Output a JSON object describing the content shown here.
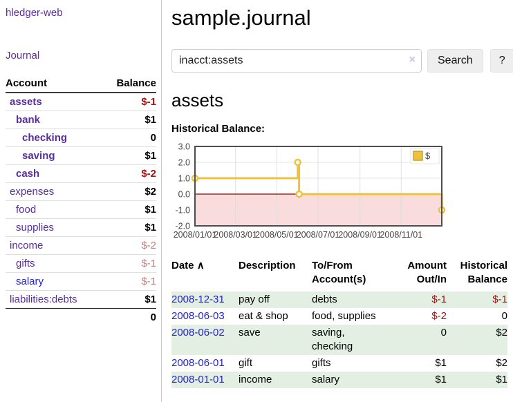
{
  "app_title": "hledger-web",
  "sidebar": {
    "journal_link": "Journal",
    "account_header": "Account",
    "balance_header": "Balance",
    "accounts": [
      {
        "name": "assets",
        "balance": "$-1",
        "indent": 0,
        "bold": true,
        "balance_class": "neg",
        "balance_bold": true,
        "link": "purple"
      },
      {
        "name": "bank",
        "balance": "$1",
        "indent": 1,
        "bold": true,
        "balance_class": "",
        "balance_bold": true,
        "link": "purple"
      },
      {
        "name": "checking",
        "balance": "0",
        "indent": 2,
        "bold": true,
        "balance_class": "",
        "balance_bold": true,
        "link": "purple"
      },
      {
        "name": "saving",
        "balance": "$1",
        "indent": 2,
        "bold": true,
        "balance_class": "",
        "balance_bold": true,
        "link": "purple"
      },
      {
        "name": "cash",
        "balance": "$-2",
        "indent": 1,
        "bold": true,
        "balance_class": "neg",
        "balance_bold": true,
        "link": "purple"
      },
      {
        "name": "expenses",
        "balance": "$2",
        "indent": 0,
        "bold": false,
        "balance_class": "",
        "balance_bold": true,
        "link": "purple"
      },
      {
        "name": "food",
        "balance": "$1",
        "indent": 1,
        "bold": false,
        "balance_class": "",
        "balance_bold": true,
        "link": "purple"
      },
      {
        "name": "supplies",
        "balance": "$1",
        "indent": 1,
        "bold": false,
        "balance_class": "",
        "balance_bold": true,
        "link": "purple"
      },
      {
        "name": "income",
        "balance": "$-2",
        "indent": 0,
        "bold": false,
        "balance_class": "negsoft",
        "balance_bold": false,
        "link": "purple"
      },
      {
        "name": "gifts",
        "balance": "$-1",
        "indent": 1,
        "bold": false,
        "balance_class": "negsoft",
        "balance_bold": false,
        "link": "purple"
      },
      {
        "name": "salary",
        "balance": "$-1",
        "indent": 1,
        "bold": false,
        "balance_class": "negsoft",
        "balance_bold": false,
        "link": "blue"
      },
      {
        "name": "liabilities:debts",
        "balance": "$1",
        "indent": 0,
        "bold": false,
        "balance_class": "",
        "balance_bold": true,
        "link": "purple"
      }
    ],
    "total": "0"
  },
  "main": {
    "title": "sample.journal",
    "search": {
      "value": "inacct:assets",
      "clear_icon": "×",
      "search_button": "Search",
      "help_button": "?"
    },
    "heading": "assets",
    "chart_title": "Historical Balance:"
  },
  "chart_data": {
    "type": "line",
    "step": true,
    "title": "Historical Balance",
    "series": [
      {
        "name": "$",
        "color": "#edc240",
        "points": [
          [
            "2008-01-01",
            1
          ],
          [
            "2008-06-01",
            2
          ],
          [
            "2008-06-03",
            0
          ],
          [
            "2008-12-31",
            -1
          ]
        ]
      }
    ],
    "xlim": [
      "2008-01-01",
      "2008-12-31"
    ],
    "ylim": [
      -2,
      3
    ],
    "yticks": [
      3,
      2,
      1,
      0,
      -1,
      -2
    ],
    "xtick_labels": [
      "2008/01/01",
      "2008/03/01",
      "2008/05/01",
      "2008/07/01",
      "2008/09/01",
      "2008/11/01"
    ],
    "negative_region_color": "#fbdcdc",
    "zero_line_color": "#8b0000",
    "grid": true,
    "legend_position": "top-right"
  },
  "register": {
    "headers": {
      "date": "Date",
      "sort_indicator": "∧",
      "description": "Description",
      "accounts": "To/From Account(s)",
      "amount": "Amount Out/In",
      "balance": "Historical Balance"
    },
    "rows": [
      {
        "date": "2008-12-31",
        "description": "pay off",
        "accounts": "debts",
        "amount": "$-1",
        "amount_negative": true,
        "balance": "$-1",
        "balance_negative": true
      },
      {
        "date": "2008-06-03",
        "description": "eat & shop",
        "accounts": "food, supplies",
        "amount": "$-2",
        "amount_negative": true,
        "balance": "0",
        "balance_negative": false
      },
      {
        "date": "2008-06-02",
        "description": "save",
        "accounts": "saving, checking",
        "amount": "0",
        "amount_negative": false,
        "balance": "$2",
        "balance_negative": false
      },
      {
        "date": "2008-06-01",
        "description": "gift",
        "accounts": "gifts",
        "amount": "$1",
        "amount_negative": false,
        "balance": "$2",
        "balance_negative": false
      },
      {
        "date": "2008-01-01",
        "description": "income",
        "accounts": "salary",
        "amount": "$1",
        "amount_negative": false,
        "balance": "$1",
        "balance_negative": false
      }
    ]
  }
}
